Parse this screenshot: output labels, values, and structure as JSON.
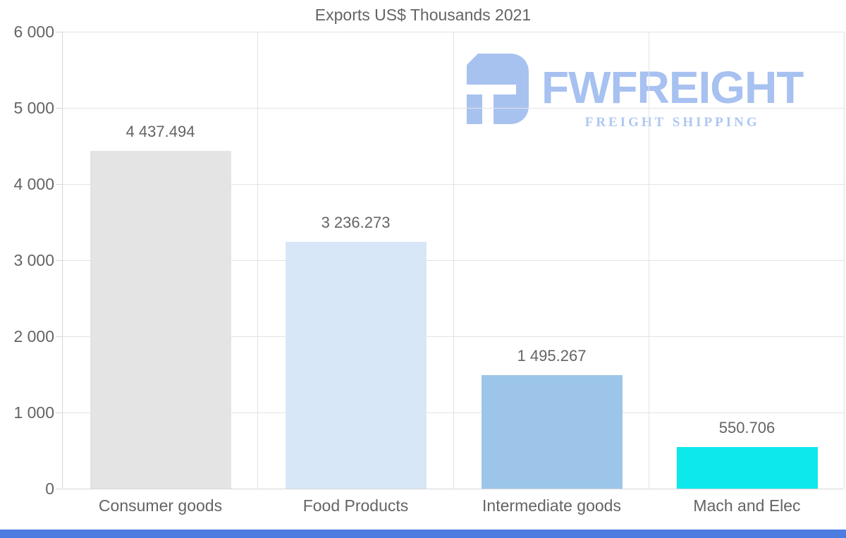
{
  "title": "Exports US$ Thousands 2021",
  "logo": {
    "brand": "FWFREIGHT",
    "tagline": "FREIGHT SHIPPING",
    "icon": "fwfreight-monogram",
    "color": "#a7c1f0",
    "tagline_color": "#aec7f2"
  },
  "chart_data": {
    "type": "bar",
    "title": "Exports US$ Thousands 2021",
    "categories": [
      "Consumer goods",
      "Food Products",
      "Intermediate goods",
      "Mach and Elec"
    ],
    "values": [
      4437.494,
      3236.273,
      1495.267,
      550.706
    ],
    "value_labels": [
      "4 437.494",
      "3 236.273",
      "1 495.267",
      "550.706"
    ],
    "bar_colors": [
      "#e4e4e4",
      "#d8e7f7",
      "#9cc5e9",
      "#0de8ec"
    ],
    "xlabel": "",
    "ylabel": "",
    "ylim": [
      0,
      6000
    ],
    "ytick_labels": [
      "6 000",
      "5 000",
      "4 000",
      "3 000",
      "2 000",
      "1 000",
      "0"
    ],
    "grid": true,
    "legend": "none"
  },
  "colors": {
    "text": "#646464",
    "grid": "#e3e3e3",
    "axis": "#d7d7d7",
    "background": "#ffffff",
    "footer_bar": "#4c7ce0"
  }
}
